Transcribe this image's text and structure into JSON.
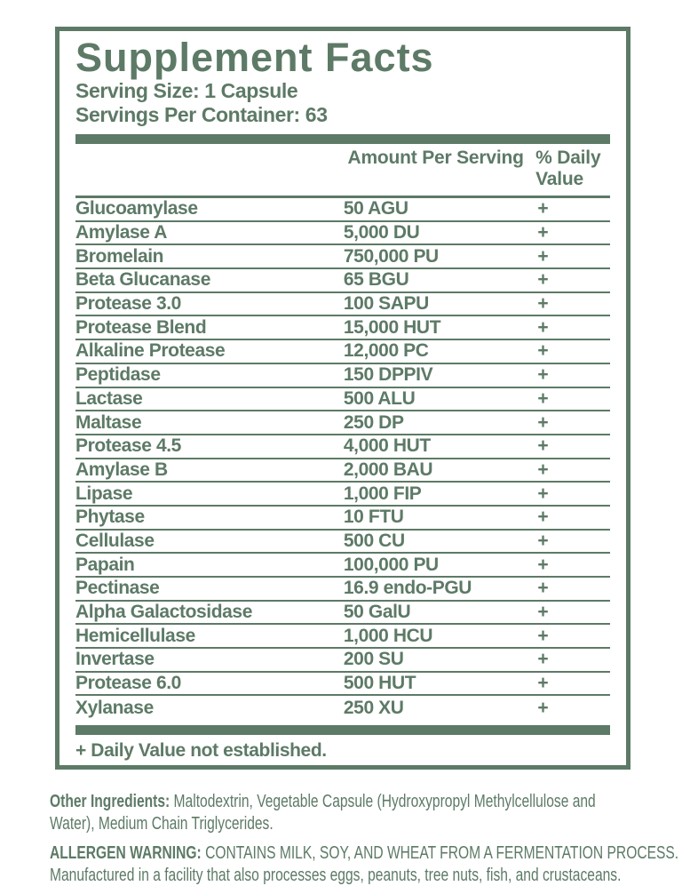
{
  "colors": {
    "green": "#5d7a66"
  },
  "panel": {
    "title": "Supplement Facts",
    "serving_size": "Serving Size: 1 Capsule",
    "servings_per_container": "Servings Per Container: 63",
    "footnote": "+ Daily Value not established."
  },
  "table": {
    "columns": [
      "Amount Per Serving",
      "% Daily Value"
    ],
    "rows": [
      {
        "name": "Glucoamylase",
        "amount": "50 AGU",
        "dv": "+"
      },
      {
        "name": "Amylase A",
        "amount": "5,000 DU",
        "dv": "+"
      },
      {
        "name": "Bromelain",
        "amount": "750,000 PU",
        "dv": "+"
      },
      {
        "name": "Beta Glucanase",
        "amount": "65 BGU",
        "dv": "+"
      },
      {
        "name": "Protease 3.0",
        "amount": "100 SAPU",
        "dv": "+"
      },
      {
        "name": "Protease Blend",
        "amount": "15,000 HUT",
        "dv": "+"
      },
      {
        "name": "Alkaline Protease",
        "amount": "12,000 PC",
        "dv": "+"
      },
      {
        "name": "Peptidase",
        "amount": "150 DPPIV",
        "dv": "+"
      },
      {
        "name": "Lactase",
        "amount": "500 ALU",
        "dv": "+"
      },
      {
        "name": "Maltase",
        "amount": "250 DP",
        "dv": "+"
      },
      {
        "name": "Protease 4.5",
        "amount": "4,000 HUT",
        "dv": "+"
      },
      {
        "name": "Amylase B",
        "amount": "2,000 BAU",
        "dv": "+"
      },
      {
        "name": "Lipase",
        "amount": "1,000 FIP",
        "dv": "+"
      },
      {
        "name": "Phytase",
        "amount": "10 FTU",
        "dv": "+"
      },
      {
        "name": "Cellulase",
        "amount": "500 CU",
        "dv": "+"
      },
      {
        "name": "Papain",
        "amount": "100,000 PU",
        "dv": "+"
      },
      {
        "name": "Pectinase",
        "amount": "16.9 endo-PGU",
        "dv": "+"
      },
      {
        "name": "Alpha Galactosidase",
        "amount": "50 GalU",
        "dv": "+"
      },
      {
        "name": "Hemicellulase",
        "amount": "1,000 HCU",
        "dv": "+"
      },
      {
        "name": "Invertase",
        "amount": "200 SU",
        "dv": "+"
      },
      {
        "name": "Protease 6.0",
        "amount": "500 HUT",
        "dv": "+"
      },
      {
        "name": "Xylanase",
        "amount": "250 XU",
        "dv": "+"
      }
    ]
  },
  "other_ingredients": {
    "label": "Other Ingredients:",
    "text": " Maltodextrin, Vegetable Capsule (Hydroxypropyl Methylcellulose and Water), Medium Chain Triglycerides."
  },
  "allergen_warning": {
    "label": "ALLERGEN WARNING:",
    "text": " CONTAINS MILK, SOY, AND WHEAT FROM A FERMENTATION PROCESS. Manufactured in a facility that also processes eggs, peanuts, tree nuts, fish, and crustaceans."
  }
}
